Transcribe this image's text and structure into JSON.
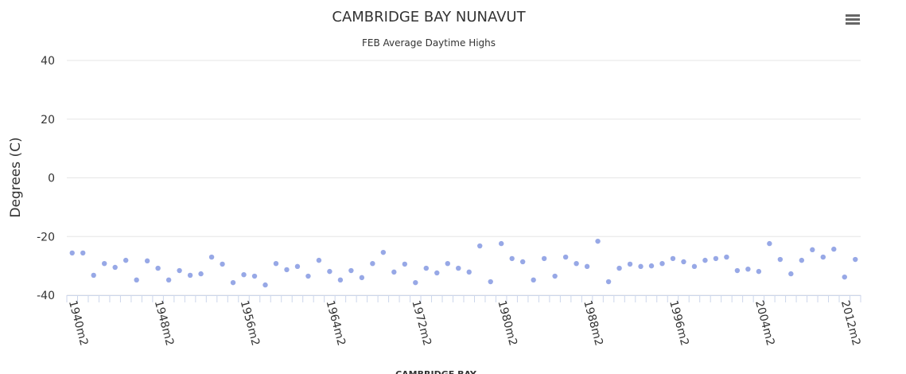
{
  "chart_data": {
    "type": "scatter",
    "title": "CAMBRIDGE BAY NUNAVUT",
    "subtitle": "FEB Average Daytime Highs",
    "y_label": "Degrees (C)",
    "ylim": [
      -40,
      40
    ],
    "yticks": [
      -40,
      -20,
      0,
      20,
      40
    ],
    "grid": true,
    "categories": [
      "1940m2",
      null,
      null,
      null,
      null,
      null,
      null,
      null,
      "1948m2",
      null,
      null,
      null,
      null,
      null,
      null,
      null,
      "1956m2",
      null,
      null,
      null,
      null,
      null,
      null,
      null,
      "1964m2",
      null,
      null,
      null,
      null,
      null,
      null,
      null,
      "1972m2",
      null,
      null,
      null,
      null,
      null,
      null,
      null,
      "1980m2",
      null,
      null,
      null,
      null,
      null,
      null,
      null,
      "1988m2",
      null,
      null,
      null,
      null,
      null,
      null,
      null,
      "1996m2",
      null,
      null,
      null,
      null,
      null,
      null,
      null,
      "2004m2",
      null,
      null,
      null,
      null,
      null,
      null,
      null,
      "2012m2",
      null
    ],
    "series": [
      {
        "name": "CAMBRIDGE BAY",
        "color": "#97a8e6",
        "values": [
          -25.6,
          -25.6,
          -33.2,
          -29.2,
          -30.5,
          -28.1,
          -34.8,
          -28.3,
          -30.8,
          -34.8,
          -31.6,
          -33.2,
          -32.7,
          -27.0,
          -29.4,
          -35.7,
          -33.0,
          -33.5,
          -36.5,
          -29.2,
          -31.3,
          -30.2,
          -33.5,
          -28.1,
          -31.9,
          -34.8,
          -31.6,
          -34.0,
          -29.2,
          -25.4,
          -32.1,
          -29.4,
          -35.7,
          -30.8,
          -32.4,
          -29.2,
          -30.8,
          -32.1,
          -23.2,
          -35.4,
          -22.4,
          -27.5,
          -28.6,
          -34.8,
          -27.5,
          -33.5,
          -27.0,
          -29.2,
          -30.2,
          -21.6,
          -35.4,
          -30.8,
          -29.4,
          -30.2,
          -30.0,
          -29.2,
          -27.5,
          -28.6,
          -30.2,
          -28.1,
          -27.5,
          -27.0,
          -31.6,
          -31.1,
          -31.9,
          -22.4,
          -27.8,
          -32.7,
          -28.1,
          -24.5,
          -27.0,
          -24.3,
          -33.8,
          -27.8
        ]
      }
    ]
  }
}
